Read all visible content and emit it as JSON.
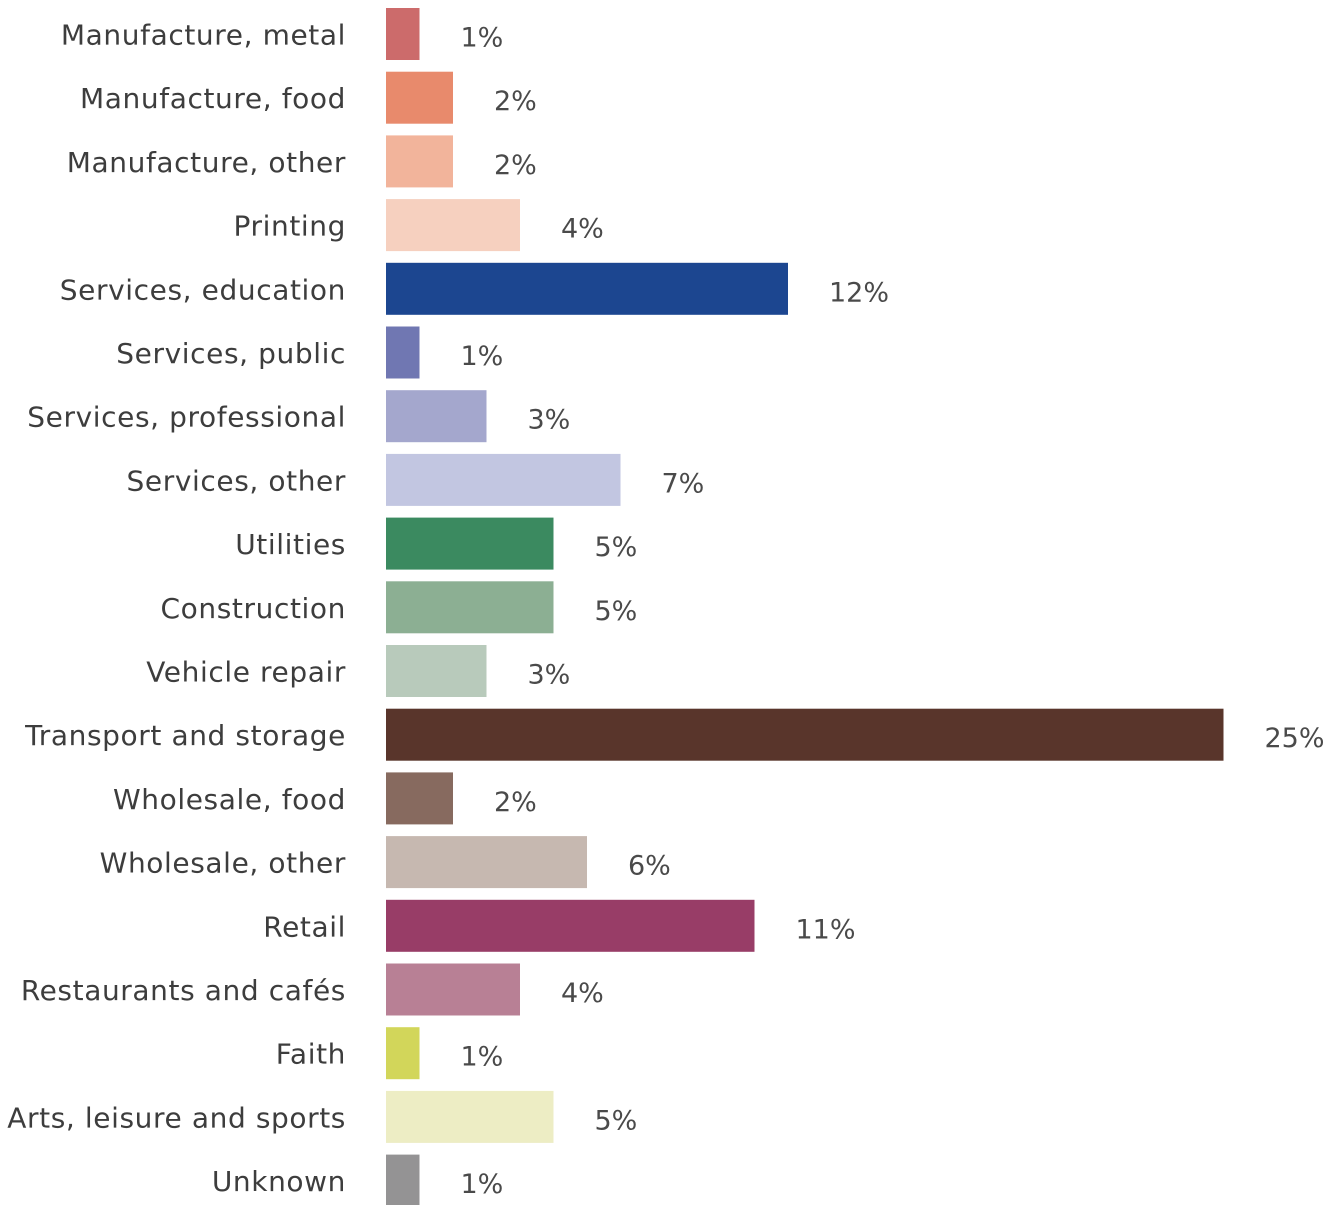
{
  "chart_data": {
    "type": "bar",
    "orientation": "horizontal",
    "title": "",
    "xlabel": "",
    "ylabel": "",
    "xlim": [
      0,
      25
    ],
    "grid": false,
    "legend": "none",
    "value_suffix": "%",
    "categories": [
      "Manufacture, metal",
      "Manufacture, food",
      "Manufacture, other",
      "Printing",
      "Services, education",
      "Services, public",
      "Services, professional",
      "Services, other",
      "Utilities",
      "Construction",
      "Vehicle repair",
      "Transport and storage",
      "Wholesale, food",
      "Wholesale, other",
      "Retail",
      "Restaurants and cafés",
      "Faith",
      "Arts, leisure and sports",
      "Unknown"
    ],
    "values": [
      1,
      2,
      2,
      4,
      12,
      1,
      3,
      7,
      5,
      5,
      3,
      25,
      2,
      6,
      11,
      4,
      1,
      5,
      1
    ],
    "value_labels": [
      "1%",
      "2%",
      "2%",
      "4%",
      "12%",
      "1%",
      "3%",
      "7%",
      "5%",
      "5%",
      "3%",
      "25%",
      "2%",
      "6%",
      "11%",
      "4%",
      "1%",
      "5%",
      "1%"
    ],
    "colors": [
      "#cc6b6b",
      "#e88a6c",
      "#f2b49b",
      "#f6d0bf",
      "#1c4690",
      "#7077b2",
      "#a4a7cd",
      "#c2c6e1",
      "#3b8a60",
      "#8caf93",
      "#b8cabb",
      "#59352b",
      "#876a5f",
      "#c6b8b0",
      "#983d67",
      "#b88095",
      "#d2d65a",
      "#ededc4",
      "#949394"
    ]
  }
}
